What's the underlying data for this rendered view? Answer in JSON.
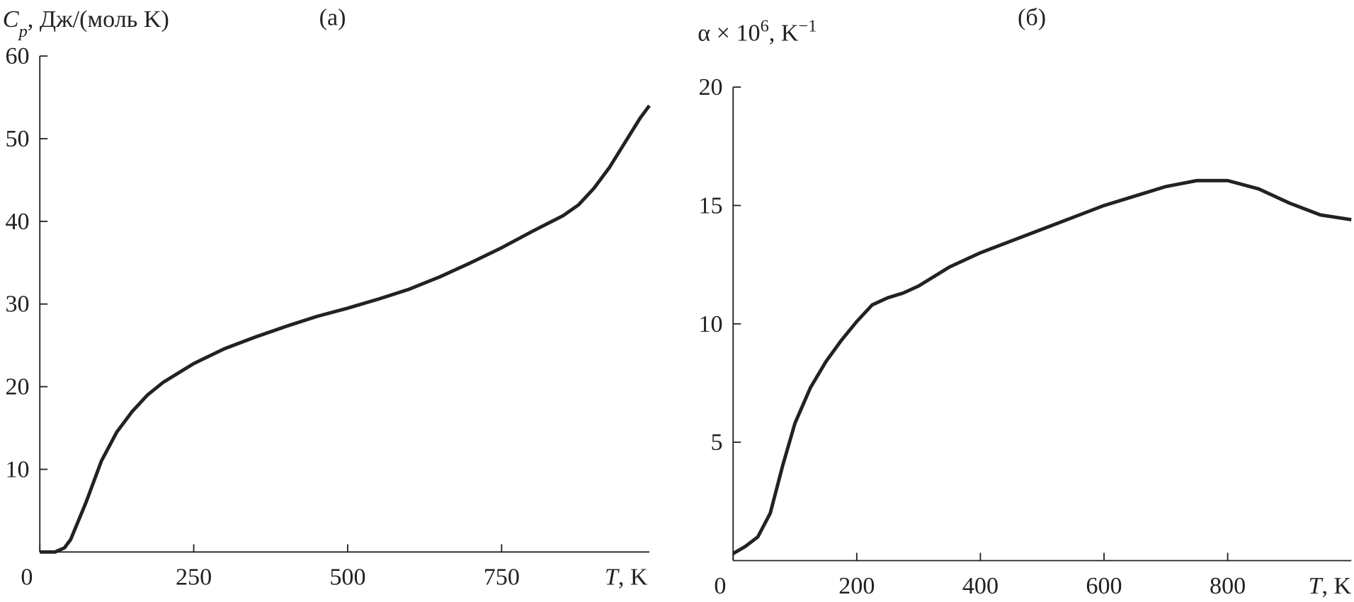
{
  "chart_data": [
    {
      "type": "line",
      "title": "(a)",
      "ylabel": [
        {
          "text": "C",
          "style": "italic"
        },
        {
          "text": "p",
          "style": "italic sub"
        },
        {
          "text": ", Дж/(моль K)",
          "style": "normal"
        }
      ],
      "xlabel": [
        {
          "text": "T",
          "style": "italic"
        },
        {
          "text": ", K",
          "style": "normal"
        }
      ],
      "x": [
        0,
        25,
        40,
        50,
        75,
        100,
        125,
        150,
        175,
        200,
        250,
        300,
        350,
        400,
        450,
        500,
        550,
        600,
        650,
        700,
        750,
        800,
        850,
        875,
        900,
        925,
        950,
        975,
        990
      ],
      "values": [
        0,
        0,
        0.5,
        1.5,
        6,
        11,
        14.5,
        17,
        19,
        20.5,
        22.8,
        24.6,
        26,
        27.3,
        28.5,
        29.5,
        30.6,
        31.8,
        33.3,
        35,
        36.8,
        38.8,
        40.7,
        42,
        44,
        46.5,
        49.5,
        52.5,
        54
      ],
      "color": "#222222",
      "xlim": [
        0,
        990
      ],
      "xticks": [
        0,
        250,
        500,
        750
      ],
      "ylim": [
        0,
        60
      ],
      "yticks": [
        10,
        20,
        30,
        40,
        50,
        60
      ]
    },
    {
      "type": "line",
      "title": "(б)",
      "ylabel": [
        {
          "text": "α × 10",
          "style": "normal"
        },
        {
          "text": "6",
          "style": "sup"
        },
        {
          "text": ", K",
          "style": "normal"
        },
        {
          "text": "−1",
          "style": "sup"
        }
      ],
      "xlabel": [
        {
          "text": "T",
          "style": "italic"
        },
        {
          "text": ", K",
          "style": "normal"
        }
      ],
      "x": [
        0,
        20,
        40,
        60,
        80,
        100,
        125,
        150,
        175,
        200,
        225,
        250,
        275,
        300,
        350,
        400,
        450,
        500,
        550,
        600,
        650,
        700,
        750,
        800,
        850,
        900,
        950,
        1000
      ],
      "values": [
        0.3,
        0.6,
        1,
        2,
        4,
        5.8,
        7.3,
        8.4,
        9.3,
        10.1,
        10.8,
        11.1,
        11.3,
        11.6,
        12.4,
        13,
        13.5,
        14,
        14.5,
        15,
        15.4,
        15.8,
        16.05,
        16.05,
        15.7,
        15.1,
        14.6,
        14.4
      ],
      "color": "#222222",
      "xlim": [
        0,
        1000
      ],
      "xticks": [
        0,
        200,
        400,
        600,
        800
      ],
      "ylim": [
        0,
        20
      ],
      "yticks": [
        5,
        10,
        15,
        20
      ]
    }
  ]
}
